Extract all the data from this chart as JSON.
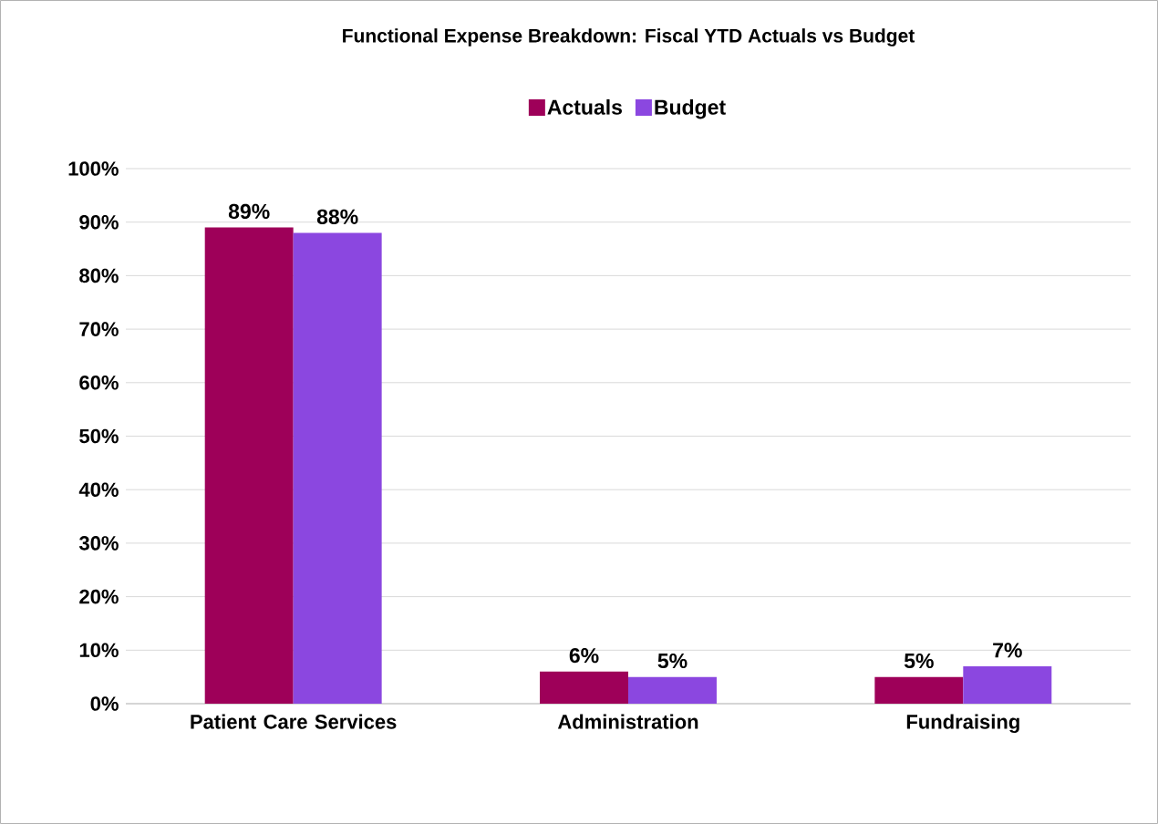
{
  "chart_data": {
    "type": "bar",
    "title": "Functional Expense Breakdown: Fiscal YTD Actuals vs Budget",
    "categories": [
      "Patient Care Services",
      "Administration",
      "Fundraising"
    ],
    "series": [
      {
        "name": "Actuals",
        "color": "#9e0059",
        "values": [
          89,
          6,
          5
        ],
        "value_labels": [
          "89%",
          "6%",
          "5%"
        ]
      },
      {
        "name": "Budget",
        "color": "#8b47e0",
        "values": [
          88,
          5,
          7
        ],
        "value_labels": [
          "88%",
          "5%",
          "7%"
        ]
      }
    ],
    "ylim": [
      0,
      100
    ],
    "yticks": [
      {
        "value": 0,
        "label": "0%"
      },
      {
        "value": 10,
        "label": "10%"
      },
      {
        "value": 20,
        "label": "20%"
      },
      {
        "value": 30,
        "label": "30%"
      },
      {
        "value": 40,
        "label": "40%"
      },
      {
        "value": 50,
        "label": "50%"
      },
      {
        "value": 60,
        "label": "60%"
      },
      {
        "value": 70,
        "label": "70%"
      },
      {
        "value": 80,
        "label": "80%"
      },
      {
        "value": 90,
        "label": "90%"
      },
      {
        "value": 100,
        "label": "100%"
      }
    ],
    "grid": "y",
    "legend": "top"
  }
}
